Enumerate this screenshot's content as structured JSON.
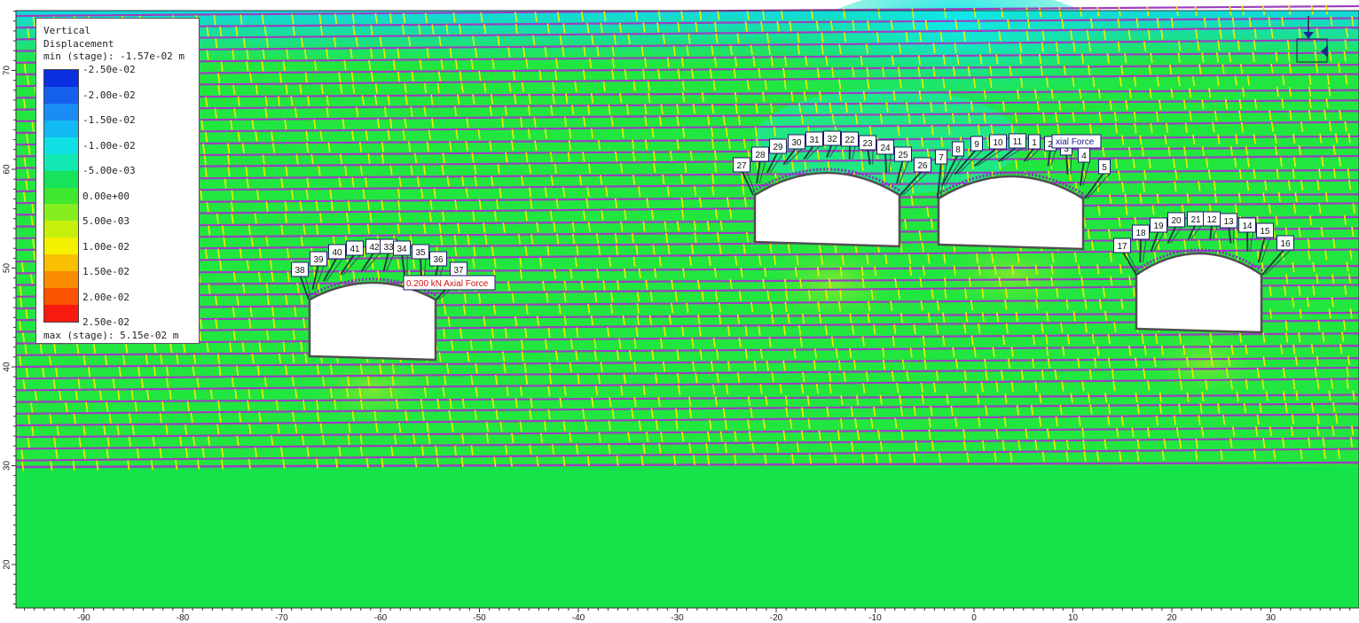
{
  "legend": {
    "title_line1": "Vertical",
    "title_line2": "Displacement",
    "min_label": "min (stage): -1.57e-02 m",
    "max_label": "max (stage): 5.15e-02 m",
    "ticks": [
      "-2.50e-02",
      "-2.00e-02",
      "-1.50e-02",
      "-1.00e-02",
      "-5.00e-03",
      "0.00e+00",
      "5.00e-03",
      "1.00e-02",
      "1.50e-02",
      "2.00e-02",
      "2.50e-02"
    ],
    "colors": [
      "#0a2fe0",
      "#1660f0",
      "#1a8cf5",
      "#12b9f2",
      "#10dfe6",
      "#12e9b2",
      "#16e25a",
      "#3fe82e",
      "#86ee20",
      "#c4f00c",
      "#f4f000",
      "#f8c000",
      "#fa8c00",
      "#fb5200",
      "#f81a10"
    ]
  },
  "axes": {
    "x_ticks": [
      "-90",
      "-80",
      "-70",
      "-60",
      "-50",
      "-40",
      "-30",
      "-20",
      "-10",
      "0",
      "10",
      "20",
      "30"
    ],
    "y_ticks": [
      "70",
      "60",
      "50",
      "40",
      "30",
      "20"
    ]
  },
  "bolt_labels": {
    "tunnel1": [
      "38",
      "39",
      "40",
      "41",
      "42",
      "33",
      "34",
      "35",
      "36",
      "37"
    ],
    "tunnel2": [
      "27",
      "28",
      "29",
      "30",
      "31",
      "32",
      "22",
      "23",
      "24",
      "25",
      "26"
    ],
    "tunnel3": [
      "7",
      "8",
      "9",
      "10",
      "11",
      "1",
      "2",
      "3",
      "4",
      "5"
    ],
    "tunnel4": [
      "17",
      "18",
      "19",
      "20",
      "21",
      "12",
      "13",
      "14",
      "15",
      "16"
    ]
  },
  "annotations": {
    "axial_force_1": "0.200 kN Axial Force",
    "axial_force_2": "xial Force"
  },
  "colors": {
    "liner": "#8a2fc0",
    "joint": "#f0f000",
    "bedding": "#9b3fc0",
    "label_border": "#1a1a6a"
  }
}
